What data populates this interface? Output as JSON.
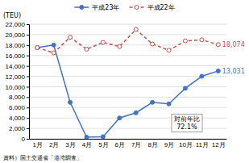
{
  "chart_data": {
    "type": "line",
    "ylabel": "(TEU)",
    "categories": [
      "1月",
      "2月",
      "3月",
      "4月",
      "5月",
      "6月",
      "7月",
      "8月",
      "9月",
      "10月",
      "11月",
      "12月"
    ],
    "series": [
      {
        "name": "平成23年",
        "color": "#4472c4",
        "marker": "circle",
        "line_style": "solid",
        "values": [
          17500,
          18000,
          7000,
          300,
          400,
          4000,
          5000,
          7000,
          6700,
          9700,
          12000,
          13031
        ]
      },
      {
        "name": "平成22年",
        "color": "#c0504d",
        "marker": "circle",
        "line_style": "dashed",
        "values": [
          17500,
          16500,
          19500,
          17200,
          18500,
          17700,
          21000,
          18200,
          17000,
          18800,
          19000,
          18074
        ]
      }
    ],
    "ylim": [
      0,
      22000
    ],
    "yticks": [
      0,
      {
        "value": 2000,
        "label": "2,000"
      },
      {
        "value": 4000,
        "label": "4,000"
      },
      {
        "value": 6000,
        "label": "6,000"
      },
      {
        "value": 8000,
        "label": "8,000"
      },
      {
        "value": 10000,
        "label": "10,000"
      },
      {
        "value": 12000,
        "label": "12,000"
      },
      {
        "value": 14000,
        "label": "14,000"
      },
      {
        "value": 16000,
        "label": "16,000"
      },
      {
        "value": 18000,
        "label": "18,000"
      },
      {
        "value": 20000,
        "label": "20,000"
      },
      {
        "value": 22000,
        "label": "22,000"
      }
    ],
    "grid": true,
    "legend": "top",
    "annotations": [
      "13,031",
      "18,074",
      "対前年比\n72.1%"
    ],
    "source": "資料）国土交通省「港湾調査」"
  }
}
